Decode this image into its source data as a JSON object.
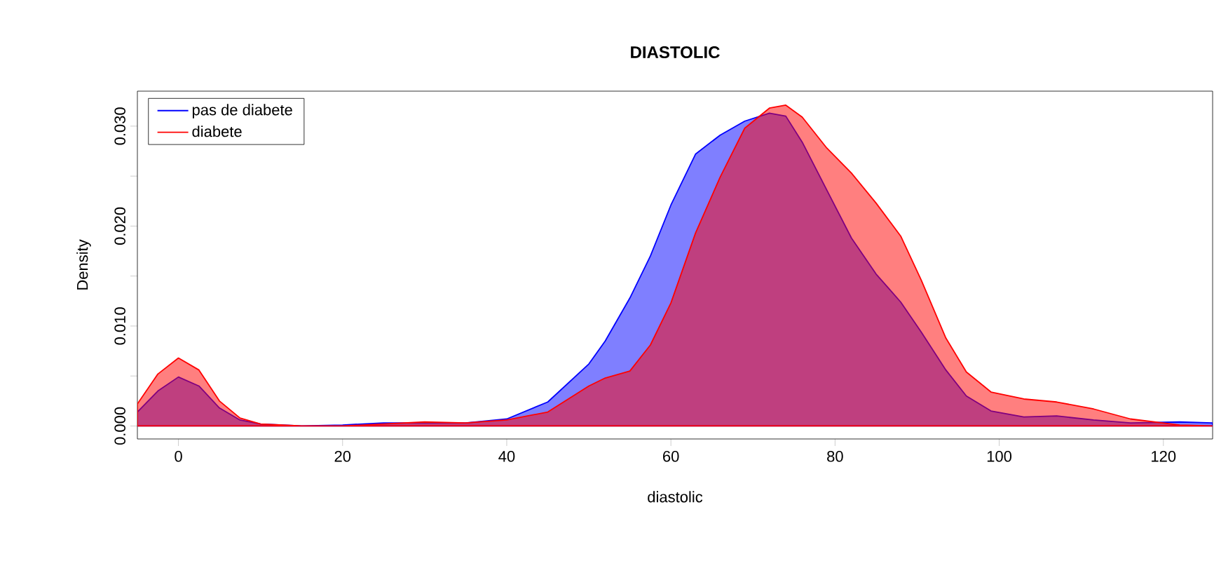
{
  "chart_data": {
    "type": "area",
    "title": "DIASTOLIC",
    "xlabel": "diastolic",
    "ylabel": "Density",
    "x": [
      -5,
      -2.5,
      0,
      2.5,
      5,
      7.5,
      10,
      15,
      20,
      25,
      30,
      35,
      40,
      45,
      50,
      52,
      55,
      57.5,
      60,
      63,
      66,
      69,
      72,
      74,
      76,
      79,
      82,
      85,
      88,
      90.5,
      93.5,
      96,
      99,
      103,
      107,
      111.5,
      116,
      122,
      126
    ],
    "series": [
      {
        "name": "pas de diabete",
        "color": "#0000ff",
        "values": [
          0.0014,
          0.0035,
          0.0049,
          0.004,
          0.0018,
          0.0006,
          0.0002,
          0.0,
          0.0001,
          0.0003,
          0.0003,
          0.0003,
          0.0007,
          0.0024,
          0.0062,
          0.0085,
          0.0128,
          0.017,
          0.0221,
          0.0272,
          0.0291,
          0.0305,
          0.0313,
          0.031,
          0.0284,
          0.0236,
          0.0188,
          0.0152,
          0.0124,
          0.0094,
          0.0056,
          0.003,
          0.0015,
          0.0009,
          0.001,
          0.0006,
          0.0003,
          0.0004,
          0.0003
        ]
      },
      {
        "name": "diabete",
        "color": "#ff0000",
        "values": [
          0.0022,
          0.0052,
          0.0068,
          0.0056,
          0.0025,
          0.0008,
          0.0002,
          0.0,
          0.0,
          0.0002,
          0.0004,
          0.0003,
          0.0006,
          0.0014,
          0.004,
          0.0048,
          0.0055,
          0.0081,
          0.0123,
          0.0193,
          0.0249,
          0.0298,
          0.0318,
          0.0321,
          0.0309,
          0.0278,
          0.0253,
          0.0223,
          0.019,
          0.0146,
          0.0088,
          0.0054,
          0.0034,
          0.0027,
          0.0024,
          0.0017,
          0.0007,
          0.0001,
          0.0
        ]
      }
    ],
    "xlim": [
      -5,
      126
    ],
    "ylim": [
      -0.0013,
      0.0335
    ],
    "xticks": [
      0,
      20,
      40,
      60,
      80,
      100,
      120
    ],
    "yticks": [
      {
        "value": 0,
        "label": "0.000"
      },
      {
        "value": 0.005,
        "label": null
      },
      {
        "value": 0.01,
        "label": "0.010"
      },
      {
        "value": 0.015,
        "label": null
      },
      {
        "value": 0.02,
        "label": "0.020"
      },
      {
        "value": 0.025,
        "label": null
      },
      {
        "value": 0.03,
        "label": "0.030"
      }
    ],
    "legend": "top left"
  }
}
